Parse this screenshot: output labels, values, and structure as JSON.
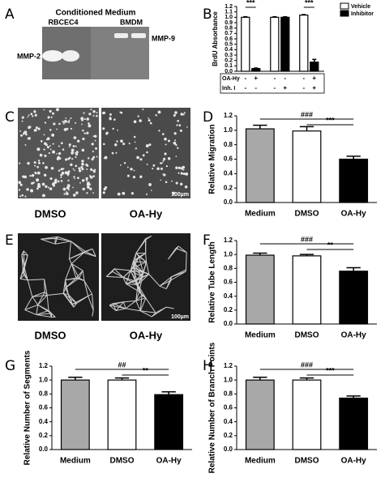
{
  "figure": {
    "panels": [
      "A",
      "B",
      "C",
      "D",
      "E",
      "F",
      "G",
      "H"
    ],
    "gel": {
      "title": "Conditioned Medium",
      "lanes": [
        "RBCEC4",
        "BMDM"
      ],
      "bands": [
        "MMP-2",
        "MMP-9"
      ]
    },
    "micrographs": [
      {
        "labels": [
          "DMSO",
          "OA-Hy"
        ],
        "scale": "100µm"
      },
      {
        "labels": [
          "DMSO",
          "OA-Hy"
        ],
        "scale": "100µm"
      }
    ]
  },
  "chart_data": [
    {
      "type": "bar",
      "ylabel": "BrdU Absorbance",
      "legend": "right",
      "series": [
        {
          "name": "Vehicle",
          "color": "#ffffff",
          "values": [
            1.0,
            1.0,
            1.04
          ],
          "errors": [
            0.01,
            0.01,
            0.01
          ]
        },
        {
          "name": "Inhibitor",
          "color": "#000000",
          "values": [
            0.05,
            1.0,
            0.17
          ],
          "errors": [
            0.01,
            0.01,
            0.05
          ]
        }
      ],
      "table": [
        {
          "label": "OA-Hy",
          "cells": [
            "-",
            "+",
            "-",
            "-",
            "-",
            "+"
          ]
        },
        {
          "label": "Inh. I",
          "cells": [
            "-",
            "-",
            "-",
            "+",
            "-",
            "+"
          ]
        }
      ],
      "annotations": [
        "***",
        "***"
      ],
      "ylim": [
        0,
        1.2
      ],
      "yticks": [
        {
          "value": 0,
          "label": "0.0"
        },
        0.1,
        0.2,
        0.3,
        0.4,
        0.5,
        0.6,
        0.7,
        0.8,
        0.9,
        {
          "value": 1,
          "label": "1.0"
        },
        1.1,
        1.2
      ]
    },
    {
      "type": "bar",
      "ylabel": "Relative Migration",
      "categories": [
        "Medium",
        "DMSO",
        "OA-Hy"
      ],
      "values": [
        1.02,
        0.99,
        0.6
      ],
      "errors": [
        0.05,
        0.06,
        0.04
      ],
      "colors": [
        "#a8a8a8",
        "#ffffff",
        "#000000"
      ],
      "annotations": [
        "###",
        "***"
      ],
      "ylim": [
        0,
        1.2
      ],
      "yticks": [
        {
          "value": 0,
          "label": "0.0"
        },
        0.2,
        0.4,
        0.6,
        0.8,
        {
          "value": 1,
          "label": "1.0"
        },
        1.2
      ]
    },
    {
      "type": "bar",
      "ylabel": "Relative Tube Length",
      "categories": [
        "Medium",
        "DMSO",
        "OA-Hy"
      ],
      "values": [
        0.99,
        0.98,
        0.76
      ],
      "errors": [
        0.03,
        0.02,
        0.05
      ],
      "colors": [
        "#a8a8a8",
        "#ffffff",
        "#000000"
      ],
      "annotations": [
        "###",
        "**"
      ],
      "ylim": [
        0,
        1.2
      ],
      "yticks": [
        {
          "value": 0,
          "label": "0.0"
        },
        0.2,
        0.4,
        0.6,
        0.8,
        {
          "value": 1,
          "label": "1.0"
        },
        1.2
      ]
    },
    {
      "type": "bar",
      "ylabel": "Relative Number of Segments",
      "categories": [
        "Medium",
        "DMSO",
        "OA-Hy"
      ],
      "values": [
        1.0,
        1.0,
        0.79
      ],
      "errors": [
        0.04,
        0.03,
        0.04
      ],
      "colors": [
        "#a8a8a8",
        "#ffffff",
        "#000000"
      ],
      "annotations": [
        "##",
        "**"
      ],
      "ylim": [
        0,
        1.2
      ],
      "yticks": [
        {
          "value": 0,
          "label": "0.0"
        },
        0.2,
        0.4,
        0.6,
        0.8,
        {
          "value": 1,
          "label": "1.0"
        },
        1.2
      ]
    },
    {
      "type": "bar",
      "ylabel": "Relative Number of Branch Points",
      "categories": [
        "Medium",
        "DMSO",
        "OA-Hy"
      ],
      "values": [
        1.0,
        1.0,
        0.74
      ],
      "errors": [
        0.04,
        0.03,
        0.03
      ],
      "colors": [
        "#a8a8a8",
        "#ffffff",
        "#000000"
      ],
      "annotations": [
        "###",
        "***"
      ],
      "ylim": [
        0,
        1.2
      ],
      "yticks": [
        {
          "value": 0,
          "label": "0.0"
        },
        0.2,
        0.4,
        0.6,
        0.8,
        {
          "value": 1,
          "label": "1.0"
        },
        1.2
      ]
    }
  ]
}
